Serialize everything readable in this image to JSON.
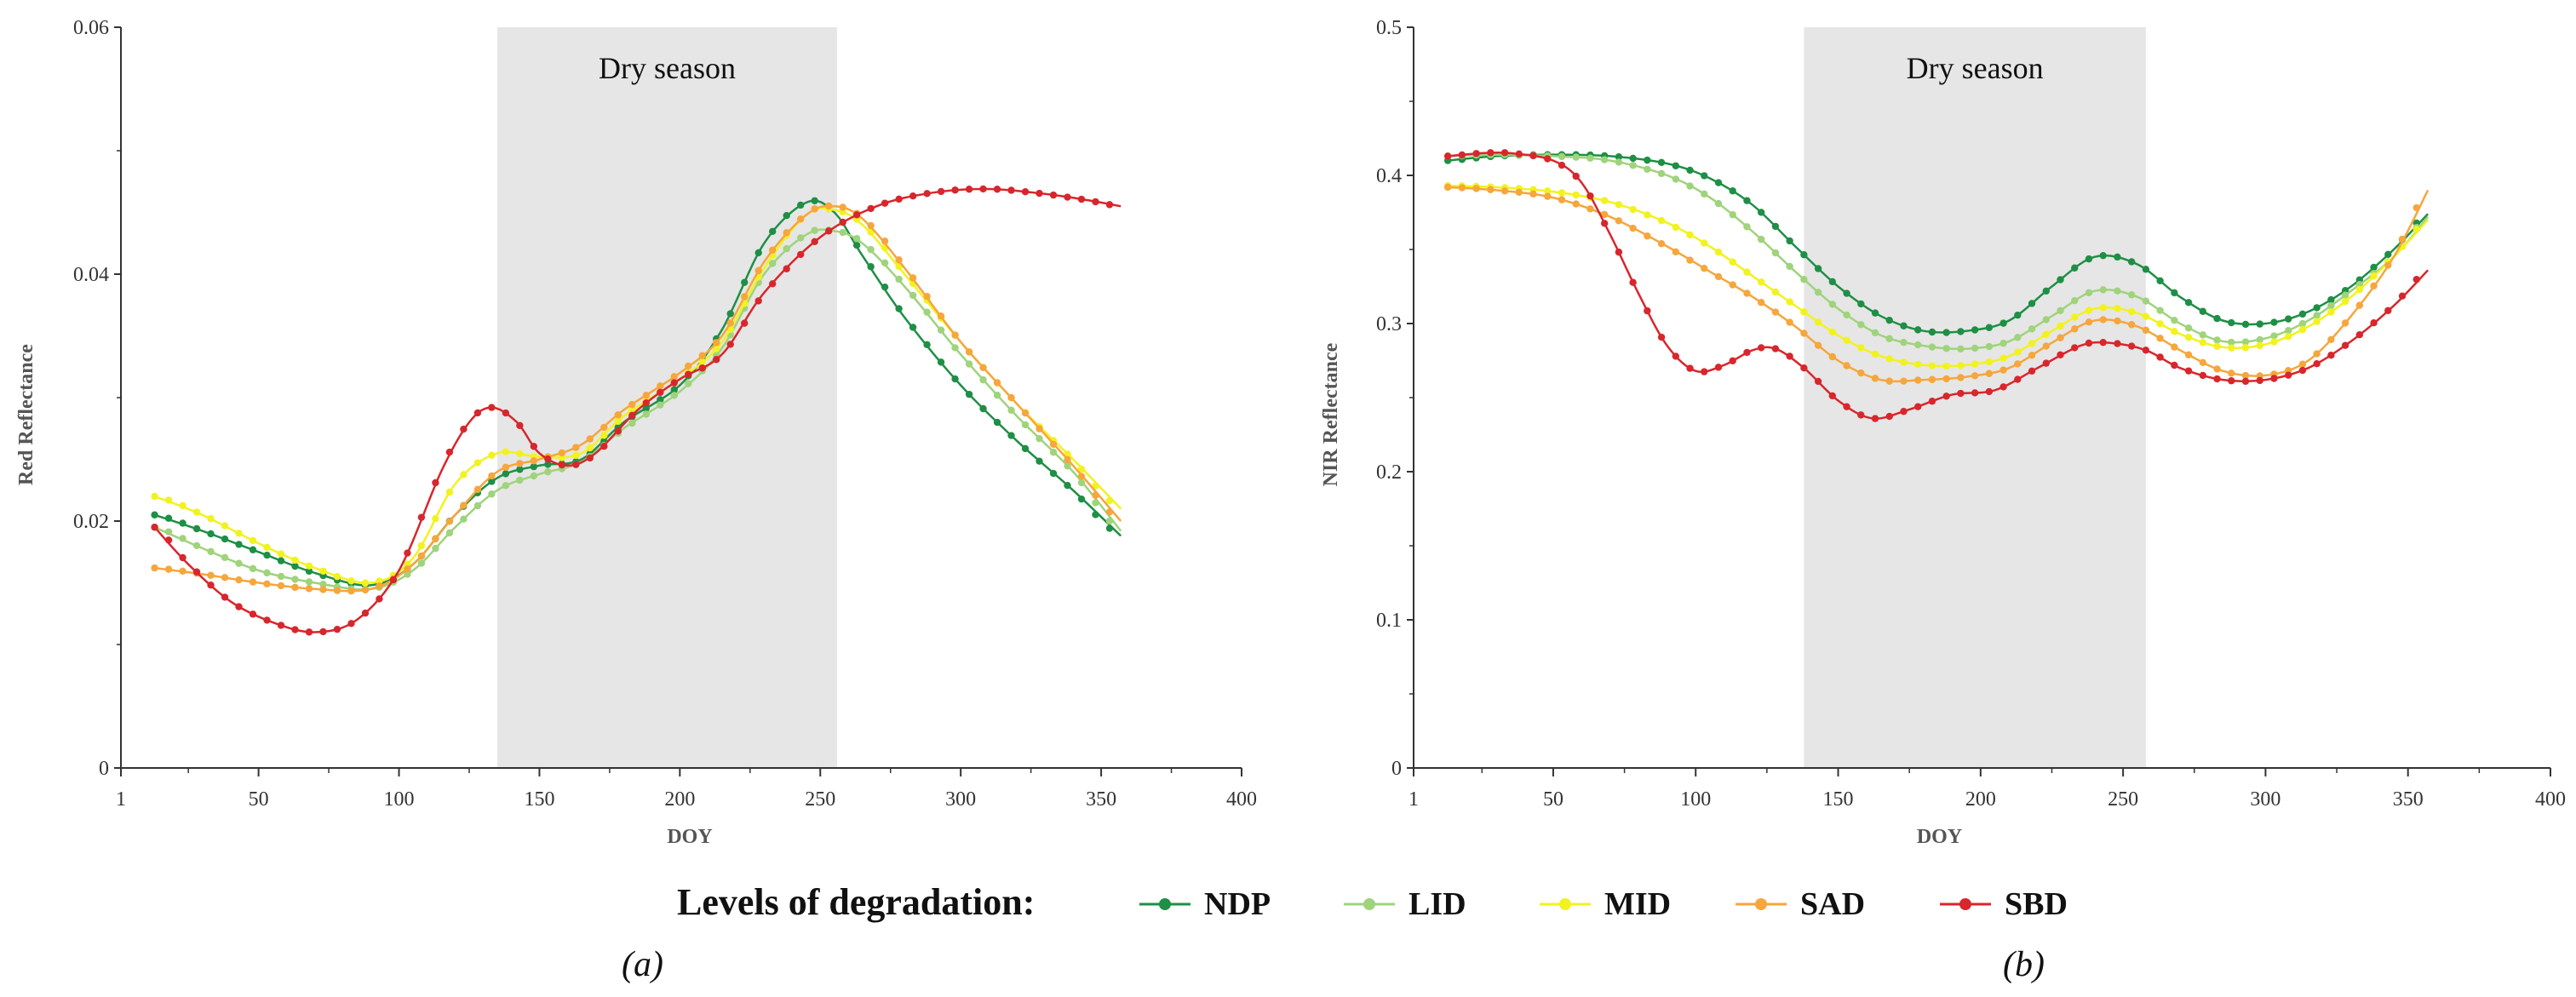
{
  "legend": {
    "title": "Levels of degradation:",
    "items": [
      {
        "name": "NDP",
        "color": "#1e8f45"
      },
      {
        "name": "LID",
        "color": "#9fd37c"
      },
      {
        "name": "MID",
        "color": "#f2f21e"
      },
      {
        "name": "SAD",
        "color": "#f6a63c"
      },
      {
        "name": "SBD",
        "color": "#d8262d"
      }
    ]
  },
  "chart_data": [
    {
      "type": "line",
      "panel_label": "(a)",
      "title": "",
      "xlabel": "DOY",
      "ylabel": "Red Reflectance",
      "xlim": [
        1,
        400
      ],
      "ylim": [
        0,
        0.06
      ],
      "xticks": [
        1,
        50,
        100,
        150,
        200,
        250,
        300,
        350,
        400
      ],
      "xtick_labels": [
        "1",
        "50",
        "100",
        "150",
        "200",
        "250",
        "300",
        "350",
        "400"
      ],
      "yticks": [
        0,
        0.02,
        0.04,
        0.06
      ],
      "ytick_labels": [
        "0",
        "0.02",
        "0.04",
        "0.06"
      ],
      "shaded_region": {
        "x_start": 135,
        "x_end": 256,
        "label": "Dry season"
      },
      "series": [
        {
          "name": "NDP",
          "color": "#1e8f45",
          "points": [
            [
              13,
              0.0205
            ],
            [
              30,
              0.0192
            ],
            [
              50,
              0.0175
            ],
            [
              70,
              0.0158
            ],
            [
              90,
              0.0148
            ],
            [
              105,
              0.0165
            ],
            [
              120,
              0.0205
            ],
            [
              135,
              0.0235
            ],
            [
              150,
              0.0245
            ],
            [
              165,
              0.025
            ],
            [
              180,
              0.028
            ],
            [
              200,
              0.031
            ],
            [
              215,
              0.0355
            ],
            [
              230,
              0.0425
            ],
            [
              245,
              0.0458
            ],
            [
              255,
              0.045
            ],
            [
              265,
              0.0415
            ],
            [
              280,
              0.0365
            ],
            [
              300,
              0.031
            ],
            [
              320,
              0.0265
            ],
            [
              340,
              0.0225
            ],
            [
              357,
              0.0188
            ]
          ]
        },
        {
          "name": "LID",
          "color": "#9fd37c",
          "points": [
            [
              13,
              0.0195
            ],
            [
              30,
              0.0178
            ],
            [
              50,
              0.016
            ],
            [
              70,
              0.015
            ],
            [
              90,
              0.0145
            ],
            [
              105,
              0.016
            ],
            [
              120,
              0.0195
            ],
            [
              135,
              0.0225
            ],
            [
              150,
              0.0238
            ],
            [
              165,
              0.0248
            ],
            [
              180,
              0.0275
            ],
            [
              200,
              0.0305
            ],
            [
              215,
              0.034
            ],
            [
              230,
              0.04
            ],
            [
              245,
              0.0432
            ],
            [
              255,
              0.0435
            ],
            [
              265,
              0.0425
            ],
            [
              280,
              0.039
            ],
            [
              300,
              0.0335
            ],
            [
              320,
              0.0285
            ],
            [
              340,
              0.024
            ],
            [
              357,
              0.0192
            ]
          ]
        },
        {
          "name": "MID",
          "color": "#f2f21e",
          "points": [
            [
              13,
              0.022
            ],
            [
              30,
              0.0205
            ],
            [
              50,
              0.0182
            ],
            [
              70,
              0.0162
            ],
            [
              90,
              0.015
            ],
            [
              105,
              0.017
            ],
            [
              120,
              0.023
            ],
            [
              135,
              0.0255
            ],
            [
              150,
              0.0252
            ],
            [
              165,
              0.0255
            ],
            [
              180,
              0.0285
            ],
            [
              200,
              0.0315
            ],
            [
              215,
              0.0345
            ],
            [
              230,
              0.0405
            ],
            [
              245,
              0.0448
            ],
            [
              255,
              0.0452
            ],
            [
              265,
              0.044
            ],
            [
              280,
              0.04
            ],
            [
              300,
              0.0345
            ],
            [
              320,
              0.0295
            ],
            [
              340,
              0.025
            ],
            [
              357,
              0.021
            ]
          ]
        },
        {
          "name": "SAD",
          "color": "#f6a63c",
          "points": [
            [
              13,
              0.0162
            ],
            [
              30,
              0.0157
            ],
            [
              50,
              0.015
            ],
            [
              70,
              0.0145
            ],
            [
              90,
              0.0145
            ],
            [
              105,
              0.0165
            ],
            [
              120,
              0.0205
            ],
            [
              135,
              0.024
            ],
            [
              150,
              0.025
            ],
            [
              165,
              0.0262
            ],
            [
              180,
              0.029
            ],
            [
              200,
              0.032
            ],
            [
              215,
              0.035
            ],
            [
              230,
              0.041
            ],
            [
              245,
              0.0448
            ],
            [
              255,
              0.0455
            ],
            [
              265,
              0.0445
            ],
            [
              280,
              0.0405
            ],
            [
              300,
              0.0345
            ],
            [
              320,
              0.0295
            ],
            [
              340,
              0.0245
            ],
            [
              357,
              0.02
            ]
          ]
        },
        {
          "name": "SBD",
          "color": "#d8262d",
          "points": [
            [
              13,
              0.0195
            ],
            [
              25,
              0.0165
            ],
            [
              40,
              0.0135
            ],
            [
              55,
              0.0118
            ],
            [
              70,
              0.011
            ],
            [
              85,
              0.012
            ],
            [
              100,
              0.016
            ],
            [
              115,
              0.024
            ],
            [
              125,
              0.028
            ],
            [
              133,
              0.0292
            ],
            [
              142,
              0.028
            ],
            [
              150,
              0.0255
            ],
            [
              160,
              0.0245
            ],
            [
              170,
              0.0255
            ],
            [
              185,
              0.029
            ],
            [
              200,
              0.0315
            ],
            [
              215,
              0.0335
            ],
            [
              230,
              0.0385
            ],
            [
              250,
              0.043
            ],
            [
              270,
              0.0455
            ],
            [
              290,
              0.0466
            ],
            [
              310,
              0.0469
            ],
            [
              330,
              0.0465
            ],
            [
              345,
              0.046
            ],
            [
              357,
              0.0455
            ]
          ]
        }
      ]
    },
    {
      "type": "line",
      "panel_label": "(b)",
      "title": "",
      "xlabel": "DOY",
      "ylabel": "NIR Reflectance",
      "xlim": [
        1,
        400
      ],
      "ylim": [
        0,
        0.5
      ],
      "xticks": [
        1,
        50,
        100,
        150,
        200,
        250,
        300,
        350,
        400
      ],
      "xtick_labels": [
        "1",
        "50",
        "100",
        "150",
        "200",
        "250",
        "300",
        "350",
        "400"
      ],
      "yticks": [
        0,
        0.1,
        0.2,
        0.3,
        0.4,
        0.5
      ],
      "ytick_labels": [
        "0",
        "0.1",
        "0.2",
        "0.3",
        "0.4",
        "0.5"
      ],
      "shaded_region": {
        "x_start": 138,
        "x_end": 258,
        "label": "Dry season"
      },
      "series": [
        {
          "name": "NDP",
          "color": "#1e8f45",
          "points": [
            [
              13,
              0.41
            ],
            [
              30,
              0.413
            ],
            [
              50,
              0.414
            ],
            [
              70,
              0.413
            ],
            [
              90,
              0.408
            ],
            [
              105,
              0.398
            ],
            [
              120,
              0.38
            ],
            [
              135,
              0.352
            ],
            [
              150,
              0.325
            ],
            [
              165,
              0.305
            ],
            [
              180,
              0.295
            ],
            [
              195,
              0.295
            ],
            [
              210,
              0.302
            ],
            [
              225,
              0.325
            ],
            [
              240,
              0.345
            ],
            [
              255,
              0.34
            ],
            [
              270,
              0.318
            ],
            [
              285,
              0.302
            ],
            [
              300,
              0.3
            ],
            [
              315,
              0.308
            ],
            [
              330,
              0.325
            ],
            [
              345,
              0.35
            ],
            [
              357,
              0.374
            ]
          ]
        },
        {
          "name": "LID",
          "color": "#9fd37c",
          "points": [
            [
              13,
              0.413
            ],
            [
              30,
              0.414
            ],
            [
              50,
              0.413
            ],
            [
              70,
              0.41
            ],
            [
              90,
              0.4
            ],
            [
              105,
              0.385
            ],
            [
              120,
              0.362
            ],
            [
              135,
              0.335
            ],
            [
              150,
              0.31
            ],
            [
              165,
              0.292
            ],
            [
              180,
              0.285
            ],
            [
              195,
              0.283
            ],
            [
              210,
              0.288
            ],
            [
              225,
              0.305
            ],
            [
              240,
              0.322
            ],
            [
              255,
              0.318
            ],
            [
              270,
              0.3
            ],
            [
              285,
              0.288
            ],
            [
              300,
              0.29
            ],
            [
              315,
              0.302
            ],
            [
              330,
              0.322
            ],
            [
              345,
              0.345
            ],
            [
              357,
              0.372
            ]
          ]
        },
        {
          "name": "MID",
          "color": "#f2f21e",
          "points": [
            [
              13,
              0.393
            ],
            [
              30,
              0.392
            ],
            [
              50,
              0.389
            ],
            [
              70,
              0.382
            ],
            [
              90,
              0.368
            ],
            [
              105,
              0.352
            ],
            [
              120,
              0.332
            ],
            [
              135,
              0.312
            ],
            [
              150,
              0.292
            ],
            [
              165,
              0.278
            ],
            [
              180,
              0.272
            ],
            [
              195,
              0.272
            ],
            [
              210,
              0.278
            ],
            [
              225,
              0.295
            ],
            [
              240,
              0.31
            ],
            [
              255,
              0.307
            ],
            [
              270,
              0.293
            ],
            [
              285,
              0.284
            ],
            [
              300,
              0.286
            ],
            [
              315,
              0.298
            ],
            [
              330,
              0.318
            ],
            [
              345,
              0.345
            ],
            [
              357,
              0.37
            ]
          ]
        },
        {
          "name": "SAD",
          "color": "#f6a63c",
          "points": [
            [
              13,
              0.392
            ],
            [
              30,
              0.39
            ],
            [
              50,
              0.385
            ],
            [
              70,
              0.372
            ],
            [
              90,
              0.352
            ],
            [
              105,
              0.335
            ],
            [
              120,
              0.318
            ],
            [
              135,
              0.298
            ],
            [
              150,
              0.275
            ],
            [
              165,
              0.262
            ],
            [
              180,
              0.262
            ],
            [
              195,
              0.264
            ],
            [
              210,
              0.27
            ],
            [
              225,
              0.287
            ],
            [
              240,
              0.302
            ],
            [
              255,
              0.298
            ],
            [
              270,
              0.282
            ],
            [
              285,
              0.268
            ],
            [
              300,
              0.265
            ],
            [
              315,
              0.275
            ],
            [
              330,
              0.305
            ],
            [
              345,
              0.345
            ],
            [
              357,
              0.39
            ]
          ]
        },
        {
          "name": "SBD",
          "color": "#d8262d",
          "points": [
            [
              13,
              0.413
            ],
            [
              25,
              0.415
            ],
            [
              35,
              0.415
            ],
            [
              50,
              0.41
            ],
            [
              60,
              0.395
            ],
            [
              70,
              0.36
            ],
            [
              80,
              0.32
            ],
            [
              90,
              0.285
            ],
            [
              100,
              0.268
            ],
            [
              110,
              0.272
            ],
            [
              120,
              0.282
            ],
            [
              128,
              0.283
            ],
            [
              138,
              0.27
            ],
            [
              150,
              0.248
            ],
            [
              162,
              0.236
            ],
            [
              175,
              0.242
            ],
            [
              190,
              0.252
            ],
            [
              205,
              0.255
            ],
            [
              220,
              0.27
            ],
            [
              235,
              0.285
            ],
            [
              245,
              0.287
            ],
            [
              258,
              0.282
            ],
            [
              270,
              0.27
            ],
            [
              285,
              0.262
            ],
            [
              300,
              0.262
            ],
            [
              315,
              0.27
            ],
            [
              330,
              0.288
            ],
            [
              345,
              0.312
            ],
            [
              357,
              0.336
            ]
          ]
        }
      ]
    }
  ]
}
